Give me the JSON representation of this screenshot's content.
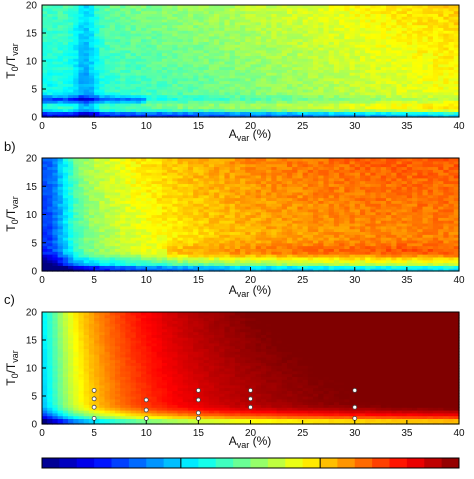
{
  "chart_data": [
    {
      "type": "heatmap",
      "panel_label": "",
      "xlabel": "A",
      "xlabel_sub": "var",
      "xlabel_suffix": " (%)",
      "ylabel": "T",
      "ylabel_sub1": "0",
      "ylabel_mid": "/T",
      "ylabel_sub2": "var",
      "xlim": [
        0,
        40
      ],
      "ylim": [
        0,
        20
      ],
      "xticks": [
        0,
        5,
        10,
        15,
        20,
        25,
        30,
        35,
        40
      ],
      "yticks": [
        0,
        5,
        10,
        15,
        20
      ],
      "field_description": "levels 0..1 on jet colormap",
      "field_model": 1,
      "points": []
    },
    {
      "type": "heatmap",
      "panel_label": "b)",
      "xlabel": "A",
      "xlabel_sub": "var",
      "xlabel_suffix": " (%)",
      "ylabel": "T",
      "ylabel_sub1": "0",
      "ylabel_mid": "/T",
      "ylabel_sub2": "var",
      "xlim": [
        0,
        40
      ],
      "ylim": [
        0,
        20
      ],
      "xticks": [
        0,
        5,
        10,
        15,
        20,
        25,
        30,
        35,
        40
      ],
      "yticks": [
        0,
        5,
        10,
        15,
        20
      ],
      "field_model": 2,
      "points": []
    },
    {
      "type": "heatmap",
      "panel_label": "c)",
      "xlabel": "A",
      "xlabel_sub": "var",
      "xlabel_suffix": " (%)",
      "ylabel": "T",
      "ylabel_sub1": "0",
      "ylabel_mid": "/T",
      "ylabel_sub2": "var",
      "xlim": [
        0,
        40
      ],
      "ylim": [
        0,
        20
      ],
      "xticks": [
        0,
        5,
        10,
        15,
        20,
        25,
        30,
        35,
        40
      ],
      "yticks": [
        0,
        5,
        10,
        15,
        20
      ],
      "field_model": 3,
      "points": [
        {
          "x": 5,
          "y": 1
        },
        {
          "x": 5,
          "y": 3
        },
        {
          "x": 5,
          "y": 4.5
        },
        {
          "x": 5,
          "y": 6
        },
        {
          "x": 10,
          "y": 1
        },
        {
          "x": 10,
          "y": 2.5
        },
        {
          "x": 10,
          "y": 4.3
        },
        {
          "x": 15,
          "y": 1
        },
        {
          "x": 15,
          "y": 2
        },
        {
          "x": 15,
          "y": 4.3
        },
        {
          "x": 15,
          "y": 6
        },
        {
          "x": 20,
          "y": 3
        },
        {
          "x": 20,
          "y": 4.5
        },
        {
          "x": 20,
          "y": 6
        },
        {
          "x": 30,
          "y": 1
        },
        {
          "x": 30,
          "y": 3
        },
        {
          "x": 30,
          "y": 6
        }
      ]
    }
  ],
  "colorbar": {
    "colormap": "jet",
    "segments": 24,
    "tick_fractions": [
      0.333,
      0.667
    ]
  },
  "colors": {
    "marker_fill": "#ffffff",
    "marker_stroke": "#444444",
    "axis": "#000000"
  }
}
